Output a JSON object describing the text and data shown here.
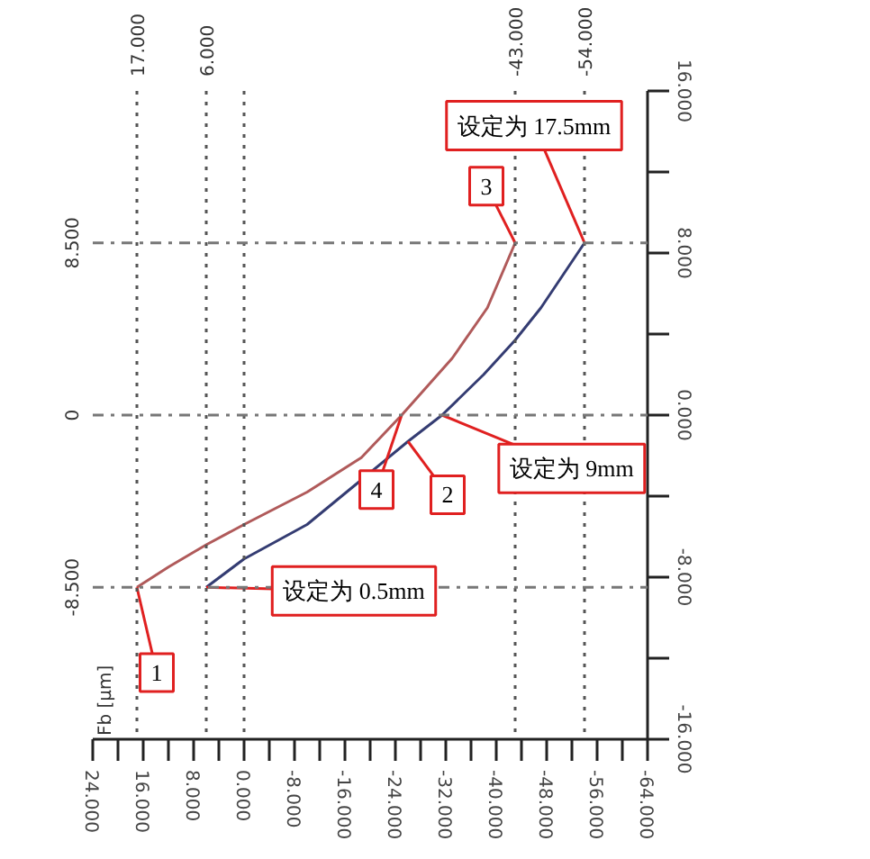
{
  "chart_data": {
    "type": "line",
    "ylabel": "Fb [μm]",
    "xlim": [
      24,
      -64
    ],
    "xticks": [
      {
        "value": 24,
        "label": "24.000"
      },
      {
        "value": 20,
        "label": null
      },
      {
        "value": 16,
        "label": "16.000"
      },
      {
        "value": 12,
        "label": null
      },
      {
        "value": 8,
        "label": "8.000"
      },
      {
        "value": 4,
        "label": null
      },
      {
        "value": 0,
        "label": "0.000"
      },
      {
        "value": -4,
        "label": null
      },
      {
        "value": -8,
        "label": "-8.000"
      },
      {
        "value": -12,
        "label": null
      },
      {
        "value": -16,
        "label": "-16.000"
      },
      {
        "value": -20,
        "label": null
      },
      {
        "value": -24,
        "label": "-24.000"
      },
      {
        "value": -28,
        "label": null
      },
      {
        "value": -32,
        "label": "-32.000"
      },
      {
        "value": -36,
        "label": null
      },
      {
        "value": -40,
        "label": "-40.000"
      },
      {
        "value": -44,
        "label": null
      },
      {
        "value": -48,
        "label": "-48.000"
      },
      {
        "value": -52,
        "label": null
      },
      {
        "value": -56,
        "label": "-56.000"
      },
      {
        "value": -60,
        "label": null
      },
      {
        "value": -64,
        "label": "-64.000"
      }
    ],
    "ylim": [
      -16,
      16
    ],
    "yticks": [
      {
        "value": 16,
        "label": "16.000"
      },
      {
        "value": 12,
        "label": null
      },
      {
        "value": 8,
        "label": "8.000"
      },
      {
        "value": 4,
        "label": null
      },
      {
        "value": 0,
        "label": "0.000"
      },
      {
        "value": -4,
        "label": null
      },
      {
        "value": -8,
        "label": "-8.000"
      },
      {
        "value": -12,
        "label": null
      },
      {
        "value": -16,
        "label": "-16.000"
      }
    ],
    "grid": false,
    "line_style": "solid",
    "marker": "none",
    "series": [
      {
        "color": "#b05a5a",
        "x": [
          17,
          12,
          6,
          0,
          -10,
          -18.6,
          -25,
          -33,
          -38.6,
          -43
        ],
        "values": [
          -8.5,
          -7.5,
          -6.4,
          -5.4,
          -3.8,
          -2.1,
          0,
          2.8,
          5.3,
          8.5
        ]
      },
      {
        "color": "#343c72",
        "x": [
          6,
          0,
          -10,
          -18.6,
          -26,
          -31.4,
          -38,
          -43,
          -47.1,
          -54
        ],
        "values": [
          -8.5,
          -7.1,
          -5.4,
          -3.2,
          -1.3,
          0,
          2,
          3.7,
          5.3,
          8.5
        ]
      }
    ],
    "ref_lines": [
      {
        "axis": "x",
        "value": 17,
        "label": "17.000",
        "line_style": "dotted",
        "color": "#555555"
      },
      {
        "axis": "x",
        "value": 6,
        "label": "6.000",
        "line_style": "dotted",
        "color": "#555555"
      },
      {
        "axis": "x",
        "value": 0,
        "label": null,
        "line_style": "dotted",
        "color": "#555555"
      },
      {
        "axis": "x",
        "value": -43,
        "label": "-43.000",
        "line_style": "dotted",
        "color": "#555555"
      },
      {
        "axis": "x",
        "value": -54,
        "label": "-54.000",
        "line_style": "dotted",
        "color": "#555555"
      },
      {
        "axis": "y",
        "value": 8.5,
        "label": "8.500",
        "line_style": "dashed",
        "color": "#777777"
      },
      {
        "axis": "y",
        "value": 0,
        "label": "0",
        "line_style": "dashed",
        "color": "#777777"
      },
      {
        "axis": "y",
        "value": -8.5,
        "label": "-8.500",
        "line_style": "dashed",
        "color": "#777777"
      }
    ],
    "annotations": [
      {
        "text": "1",
        "x": 17,
        "y": -8.5
      },
      {
        "text": "2",
        "x": -26,
        "y": -1.3
      },
      {
        "text": "3",
        "x": -43,
        "y": 8.5
      },
      {
        "text": "4",
        "x": -25,
        "y": 0
      },
      {
        "text": "设定为 17.5mm",
        "x": -54,
        "y": 8.5
      },
      {
        "text": "设定为 9mm",
        "x": -31.4,
        "y": 0
      },
      {
        "text": "设定为 0.5mm",
        "x": 6,
        "y": -8.5
      }
    ]
  }
}
